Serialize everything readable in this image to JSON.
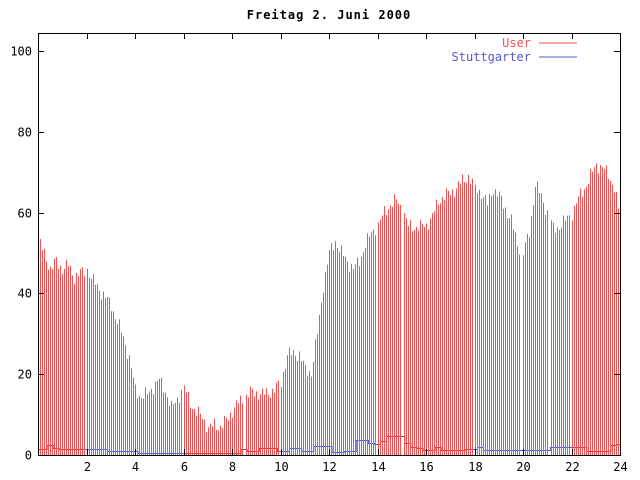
{
  "chart_data": {
    "type": "bar",
    "title": "Freitag 2. Juni 2000",
    "xlabel": "",
    "ylabel": "",
    "xlim": [
      0,
      24
    ],
    "ylim": [
      0,
      104.5
    ],
    "xticks": [
      2,
      4,
      6,
      8,
      10,
      12,
      14,
      16,
      18,
      20,
      22,
      24
    ],
    "yticks": [
      0,
      20,
      40,
      60,
      80,
      100
    ],
    "grid": false,
    "legend_position": "top-right",
    "x_start_hours": 0,
    "x_step_hours": 0.25,
    "gaps_hours": [
      8.49,
      15.01,
      19.92,
      21.07
    ],
    "series": [
      {
        "name": "User",
        "style": "impulses",
        "color": "#f25252",
        "values": [
          53,
          50,
          46,
          48,
          46,
          47,
          44,
          45,
          46,
          43,
          41,
          39,
          37,
          33,
          29,
          24,
          16,
          14.5,
          15,
          17,
          18.5,
          16,
          11.5,
          14,
          16.5,
          13,
          10.5,
          9.5,
          6.5,
          7.5,
          7,
          8.5,
          11,
          13,
          14,
          15.5,
          15.5,
          15,
          15.5,
          16,
          18,
          25,
          25,
          25,
          21,
          20.5,
          30,
          42,
          50,
          53,
          50,
          48,
          46,
          48,
          52,
          55,
          57,
          60,
          62,
          63,
          61,
          56.5,
          56.5,
          56.5,
          57,
          59,
          63,
          64,
          65,
          66,
          68,
          69,
          66,
          65,
          62,
          66,
          64,
          61,
          58,
          52,
          50,
          55,
          67,
          64,
          60,
          56,
          56.5,
          58,
          60,
          63.5,
          66,
          69,
          72,
          71,
          69.5,
          66,
          58
        ]
      },
      {
        "name": "Stuttgarter",
        "style": "line",
        "color": "#5757cd",
        "values": [
          1.5,
          1.6,
          2.4,
          1.8,
          1.6,
          1.6,
          1.6,
          1.6,
          1.6,
          1.6,
          1.6,
          1.6,
          0.9,
          0.9,
          0.9,
          0.9,
          0.9,
          0.5,
          0.5,
          0.5,
          0.5,
          0.5,
          0.5,
          0.5,
          0.5,
          0.5,
          0.5,
          0.5,
          0.5,
          0.5,
          0.5,
          0.5,
          0.5,
          0.5,
          1.4,
          1.0,
          1.0,
          1.8,
          1.8,
          1.8,
          1.0,
          1.0,
          1.8,
          1.8,
          1.0,
          1.0,
          2.2,
          2.2,
          2.2,
          0.8,
          0.8,
          1.0,
          1.0,
          3.6,
          3.6,
          3.0,
          2.8,
          3.5,
          4.6,
          4.8,
          4.6,
          3.0,
          2.0,
          1.8,
          1.3,
          1.3,
          2.0,
          1.3,
          1.3,
          1.3,
          1.3,
          1.5,
          1.5,
          2.0,
          1.3,
          1.3,
          1.3,
          1.3,
          1.3,
          1.3,
          1.3,
          1.3,
          1.3,
          1.3,
          1.3,
          1.9,
          1.9,
          1.9,
          1.9,
          1.9,
          1.9,
          0.9,
          0.9,
          0.9,
          0.9,
          2.4,
          2.8
        ]
      }
    ],
    "colors": {
      "background": "#ffffff",
      "border": "#000000",
      "tick_text": "#000000",
      "user_red": "#f25252",
      "stuttgarter_blue": "#5757cd"
    }
  }
}
